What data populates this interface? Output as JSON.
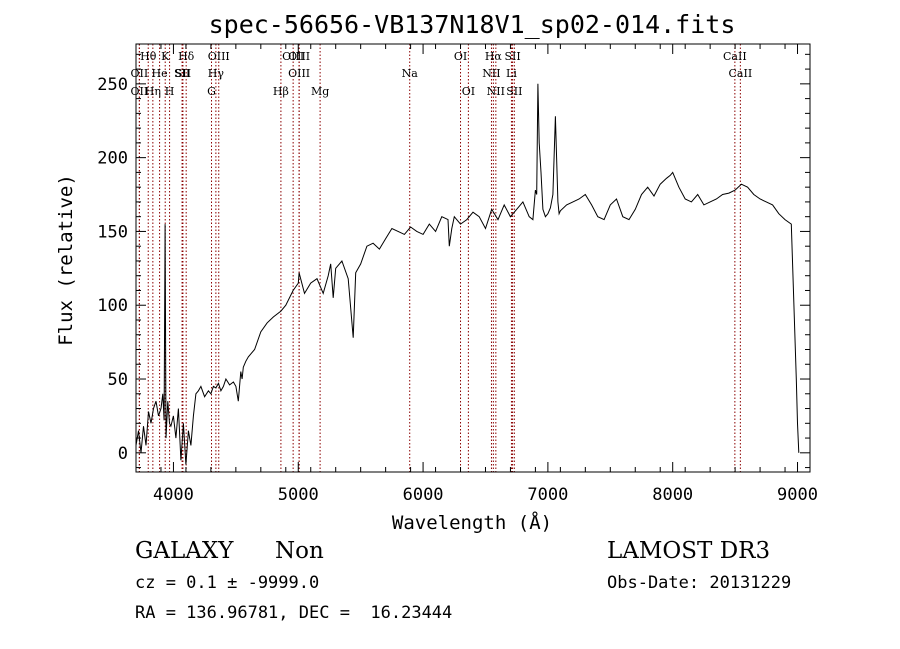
{
  "chart_data": {
    "type": "line",
    "title": "spec-56656-VB137N18V1_sp02-014.fits",
    "xlabel": "Wavelength (Å)",
    "ylabel": "Flux (relative)",
    "xlim": [
      3700,
      9100
    ],
    "ylim": [
      -13,
      277
    ],
    "xticks": [
      4000,
      5000,
      6000,
      7000,
      8000,
      9000
    ],
    "yticks": [
      0,
      50,
      100,
      150,
      200,
      250
    ],
    "grid": false,
    "series": [
      {
        "color": "#000000",
        "x": [
          3700,
          3720,
          3740,
          3760,
          3780,
          3800,
          3820,
          3840,
          3860,
          3880,
          3900,
          3915,
          3925,
          3933,
          3940,
          3955,
          3968,
          3980,
          4000,
          4020,
          4040,
          4060,
          4080,
          4100,
          4120,
          4140,
          4160,
          4180,
          4200,
          4220,
          4250,
          4280,
          4300,
          4320,
          4340,
          4360,
          4380,
          4400,
          4420,
          4450,
          4480,
          4500,
          4520,
          4540,
          4550,
          4560,
          4580,
          4600,
          4650,
          4700,
          4750,
          4800,
          4861,
          4900,
          4959,
          5000,
          5007,
          5050,
          5100,
          5150,
          5200,
          5240,
          5260,
          5280,
          5300,
          5350,
          5400,
          5440,
          5460,
          5500,
          5550,
          5600,
          5650,
          5700,
          5750,
          5800,
          5850,
          5900,
          5950,
          6000,
          6050,
          6100,
          6150,
          6200,
          6210,
          6230,
          6250,
          6300,
          6350,
          6400,
          6450,
          6500,
          6550,
          6600,
          6620,
          6650,
          6700,
          6750,
          6800,
          6850,
          6880,
          6900,
          6910,
          6920,
          6930,
          6945,
          6960,
          6980,
          7000,
          7020,
          7040,
          7060,
          7070,
          7080,
          7090,
          7100,
          7150,
          7200,
          7250,
          7300,
          7350,
          7400,
          7450,
          7500,
          7550,
          7600,
          7650,
          7700,
          7750,
          7800,
          7850,
          7900,
          7950,
          7980,
          8000,
          8050,
          8100,
          8150,
          8200,
          8250,
          8300,
          8350,
          8400,
          8450,
          8500,
          8550,
          8600,
          8650,
          8700,
          8750,
          8800,
          8850,
          8900,
          8950,
          8990,
          9000,
          9010
        ],
        "y": [
          5,
          15,
          0,
          18,
          5,
          28,
          20,
          30,
          35,
          25,
          30,
          40,
          22,
          155,
          10,
          35,
          20,
          18,
          25,
          10,
          30,
          -5,
          20,
          -8,
          15,
          5,
          25,
          40,
          42,
          45,
          38,
          42,
          40,
          45,
          44,
          47,
          42,
          45,
          50,
          46,
          48,
          45,
          35,
          55,
          50,
          58,
          62,
          65,
          70,
          82,
          88,
          92,
          96,
          100,
          110,
          115,
          122,
          108,
          115,
          118,
          108,
          120,
          128,
          105,
          125,
          130,
          118,
          78,
          122,
          128,
          140,
          142,
          138,
          145,
          152,
          150,
          148,
          153,
          150,
          148,
          155,
          150,
          160,
          158,
          140,
          152,
          160,
          155,
          158,
          163,
          160,
          152,
          165,
          158,
          162,
          168,
          160,
          165,
          170,
          160,
          158,
          178,
          175,
          250,
          210,
          190,
          165,
          160,
          162,
          166,
          175,
          228,
          200,
          170,
          162,
          164,
          168,
          170,
          172,
          175,
          168,
          160,
          158,
          168,
          172,
          160,
          158,
          165,
          175,
          180,
          174,
          182,
          186,
          188,
          190,
          180,
          172,
          170,
          175,
          168,
          170,
          172,
          175,
          176,
          178,
          182,
          180,
          175,
          172,
          170,
          168,
          162,
          158,
          155,
          50,
          20,
          0
        ]
      }
    ],
    "lines": [
      "OII",
      "Hθ",
      "OII",
      "He",
      "Hη",
      "K",
      "H",
      "Hδ",
      "SII",
      "SII",
      "OIII",
      "Hγ",
      "G",
      "OIII",
      "Hβ",
      "OIII",
      "OIII",
      "Mg",
      "Na",
      "OI",
      "OI",
      "Hα",
      "NII",
      "SII",
      "NII",
      "Li",
      "SII",
      "CaII",
      "CaII"
    ],
    "line_wavelengths": [
      3727,
      3798,
      3727,
      3889,
      3835,
      3934,
      3969,
      4102,
      4069,
      4076,
      4363,
      4340,
      4305,
      4959,
      4861,
      5007,
      5007,
      5175,
      5893,
      6300,
      6363,
      6563,
      6548,
      6717,
      6583,
      6708,
      6731,
      8498,
      8542
    ],
    "line_label_rows": [
      2,
      1,
      3,
      2,
      3,
      1,
      3,
      1,
      2,
      2,
      1,
      2,
      3,
      1,
      3,
      2,
      1,
      3,
      2,
      1,
      3,
      1,
      2,
      1,
      3,
      2,
      3,
      1,
      2
    ]
  },
  "info": {
    "class_label": "GALAXY",
    "subclass_label": "Non",
    "survey_label": "LAMOST DR3",
    "cz_text": "cz = 0.1 ± -9999.0",
    "obsdate_text": "Obs-Date: 20131229",
    "radec_text": "RA = 136.96781, DEC =  16.23444"
  }
}
